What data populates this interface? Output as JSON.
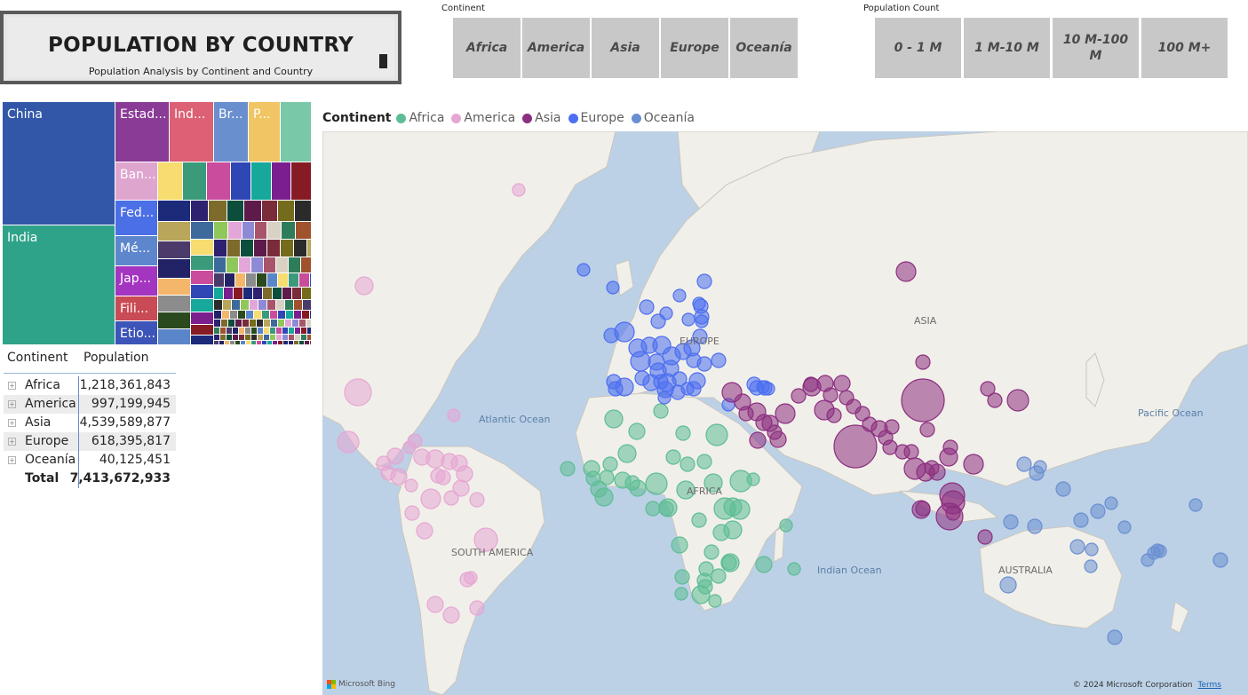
{
  "header": {
    "title": "POPULATION BY COUNTRY",
    "subtitle": "Population Analysis by Continent and Country"
  },
  "continent_slicer": {
    "label": "Continent",
    "options": [
      "Africa",
      "America",
      "Asia",
      "Europe",
      "Oceanía"
    ]
  },
  "population_slicer": {
    "label": "Population Count",
    "options": [
      "0 - 1 M",
      "1 M-10 M",
      "10 M-100 M",
      "100 M+"
    ]
  },
  "treemap": {
    "labels": {
      "china": "China",
      "india": "India",
      "usa": "Estad...",
      "indonesia": "Ind...",
      "brazil": "Br...",
      "pakistan": "P...",
      "bangladesh": "Ban...",
      "russia": "Fed...",
      "mexico": "Mé...",
      "japan": "Jap...",
      "philippines": "Fili...",
      "ethiopia": "Etio..."
    }
  },
  "matrix": {
    "headers": {
      "continent": "Continent",
      "population": "Population"
    },
    "rows": [
      {
        "name": "Africa",
        "value": "1,218,361,843"
      },
      {
        "name": "America",
        "value": "997,199,945"
      },
      {
        "name": "Asia",
        "value": "4,539,589,877"
      },
      {
        "name": "Europe",
        "value": "618,395,817"
      },
      {
        "name": "Oceanía",
        "value": "40,125,451"
      }
    ],
    "total": {
      "name": "Total",
      "value": "7,413,672,933"
    },
    "expand_glyph": "+"
  },
  "map": {
    "legend_title": "Continent",
    "legend": [
      {
        "name": "Africa",
        "color": "#5dbd94"
      },
      {
        "name": "America",
        "color": "#e6a6d4"
      },
      {
        "name": "Asia",
        "color": "#8c2f80"
      },
      {
        "name": "Europe",
        "color": "#4d6ff0"
      },
      {
        "name": "Oceanía",
        "color": "#6a8fd1"
      }
    ],
    "labels": {
      "atlantic": "Atlantic Ocean",
      "pacific": "Pacific Ocean",
      "indian": "Indian Ocean",
      "asia": "ASIA",
      "europe": "EUROPE",
      "africa": "AFRICA",
      "south_america": "SOUTH AMERICA",
      "australia": "AUSTRALIA"
    },
    "provider": "Microsoft Bing",
    "copyright": "© 2024 Microsoft Corporation",
    "terms": "Terms"
  }
}
